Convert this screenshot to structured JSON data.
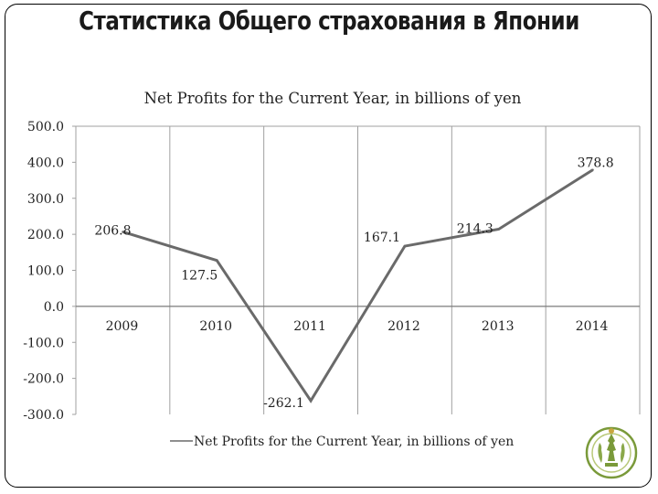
{
  "slide": {
    "title": "Статистика Общего страхования в Японии"
  },
  "chart_data": {
    "type": "line",
    "title": "Net Profits for the Current Year, in billions of yen",
    "categories": [
      "2009",
      "2010",
      "2011",
      "2012",
      "2013",
      "2014"
    ],
    "series": [
      {
        "name": "Net Profits for the Current Year, in billions of yen",
        "values": [
          206.8,
          127.5,
          -262.1,
          167.1,
          214.3,
          378.8
        ],
        "labels": [
          "206.8",
          "127.5",
          "-262.1",
          "167.1",
          "214.3",
          "378.8"
        ]
      }
    ],
    "y_ticks": [
      "500.0",
      "400.0",
      "300.0",
      "200.0",
      "100.0",
      "0.0",
      "-100.0",
      "-200.0",
      "-300.0"
    ],
    "ylim": [
      -300,
      500
    ],
    "xlabel": "",
    "ylabel": "",
    "grid": "vertical",
    "legend": "bottom",
    "colors": {
      "line": "#6a6a6a",
      "grid": "#a0a0a0",
      "text": "#222222"
    }
  },
  "emblem": {
    "icon": "coat-of-arms-icon",
    "color": "#7a9a3a"
  }
}
